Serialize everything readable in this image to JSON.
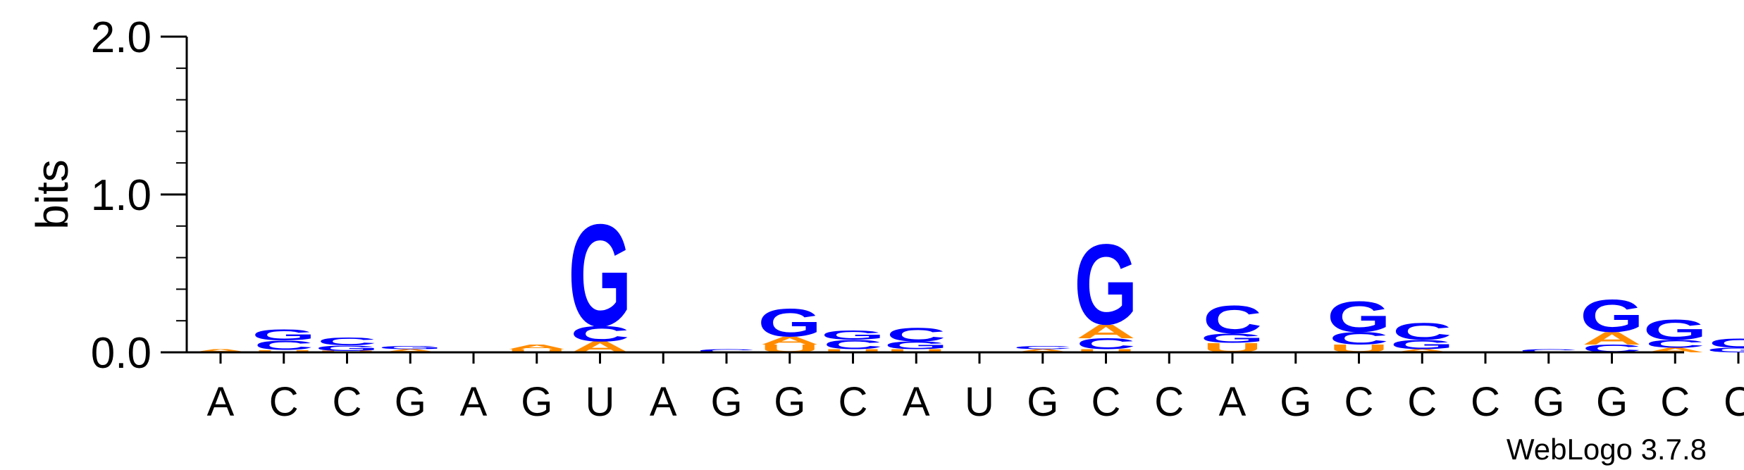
{
  "chart_data": {
    "type": "sequence-logo",
    "ylabel": "bits",
    "ylim": [
      0,
      2.0
    ],
    "yticks": [
      "0.0",
      "1.0",
      "2.0"
    ],
    "watermark": "WebLogo 3.7.8",
    "colors": {
      "G": "#0000ff",
      "C": "#0000ff",
      "A": "#ff8c00",
      "U": "#ff8c00"
    },
    "positions": [
      {
        "label": "A",
        "stack": [
          {
            "letter": "A",
            "height": 0.02
          }
        ]
      },
      {
        "label": "C",
        "stack": [
          {
            "letter": "U",
            "height": 0.015
          },
          {
            "letter": "C",
            "height": 0.06
          },
          {
            "letter": "G",
            "height": 0.07
          }
        ]
      },
      {
        "label": "C",
        "stack": [
          {
            "letter": "U",
            "height": 0.01
          },
          {
            "letter": "G",
            "height": 0.035
          },
          {
            "letter": "C",
            "height": 0.05
          }
        ]
      },
      {
        "label": "G",
        "stack": [
          {
            "letter": "A",
            "height": 0.02
          },
          {
            "letter": "G",
            "height": 0.02
          }
        ]
      },
      {
        "label": "A",
        "stack": []
      },
      {
        "label": "G",
        "stack": [
          {
            "letter": "U",
            "height": 0.02
          },
          {
            "letter": "A",
            "height": 0.03
          }
        ]
      },
      {
        "label": "U",
        "stack": [
          {
            "letter": "A",
            "height": 0.07
          },
          {
            "letter": "C",
            "height": 0.1
          },
          {
            "letter": "G",
            "height": 0.66
          }
        ]
      },
      {
        "label": "A",
        "stack": []
      },
      {
        "label": "G",
        "stack": [
          {
            "letter": "C",
            "height": 0.02
          }
        ]
      },
      {
        "label": "G",
        "stack": [
          {
            "letter": "U",
            "height": 0.05
          },
          {
            "letter": "A",
            "height": 0.05
          },
          {
            "letter": "G",
            "height": 0.18
          }
        ]
      },
      {
        "label": "C",
        "stack": [
          {
            "letter": "U",
            "height": 0.02
          },
          {
            "letter": "C",
            "height": 0.06
          },
          {
            "letter": "G",
            "height": 0.06
          }
        ]
      },
      {
        "label": "A",
        "stack": [
          {
            "letter": "U",
            "height": 0.02
          },
          {
            "letter": "G",
            "height": 0.05
          },
          {
            "letter": "C",
            "height": 0.09
          }
        ]
      },
      {
        "label": "U",
        "stack": []
      },
      {
        "label": "G",
        "stack": [
          {
            "letter": "A",
            "height": 0.02
          },
          {
            "letter": "C",
            "height": 0.02
          }
        ]
      },
      {
        "label": "C",
        "stack": [
          {
            "letter": "U",
            "height": 0.02
          },
          {
            "letter": "C",
            "height": 0.07
          },
          {
            "letter": "A",
            "height": 0.09
          },
          {
            "letter": "G",
            "height": 0.52
          }
        ]
      },
      {
        "label": "C",
        "stack": []
      },
      {
        "label": "A",
        "stack": [
          {
            "letter": "U",
            "height": 0.06
          },
          {
            "letter": "G",
            "height": 0.06
          },
          {
            "letter": "C",
            "height": 0.18
          }
        ]
      },
      {
        "label": "G",
        "stack": []
      },
      {
        "label": "C",
        "stack": [
          {
            "letter": "U",
            "height": 0.05
          },
          {
            "letter": "C",
            "height": 0.08
          },
          {
            "letter": "G",
            "height": 0.2
          }
        ]
      },
      {
        "label": "C",
        "stack": [
          {
            "letter": "A",
            "height": 0.02
          },
          {
            "letter": "G",
            "height": 0.06
          },
          {
            "letter": "C",
            "height": 0.11
          }
        ]
      },
      {
        "label": "C",
        "stack": []
      },
      {
        "label": "G",
        "stack": [
          {
            "letter": "C",
            "height": 0.02
          }
        ]
      },
      {
        "label": "G",
        "stack": [
          {
            "letter": "C",
            "height": 0.05
          },
          {
            "letter": "A",
            "height": 0.08
          },
          {
            "letter": "G",
            "height": 0.21
          }
        ]
      },
      {
        "label": "C",
        "stack": [
          {
            "letter": "A",
            "height": 0.03
          },
          {
            "letter": "C",
            "height": 0.05
          },
          {
            "letter": "G",
            "height": 0.13
          }
        ]
      },
      {
        "label": "C",
        "stack": [
          {
            "letter": "G",
            "height": 0.03
          },
          {
            "letter": "C",
            "height": 0.06
          }
        ]
      }
    ]
  }
}
